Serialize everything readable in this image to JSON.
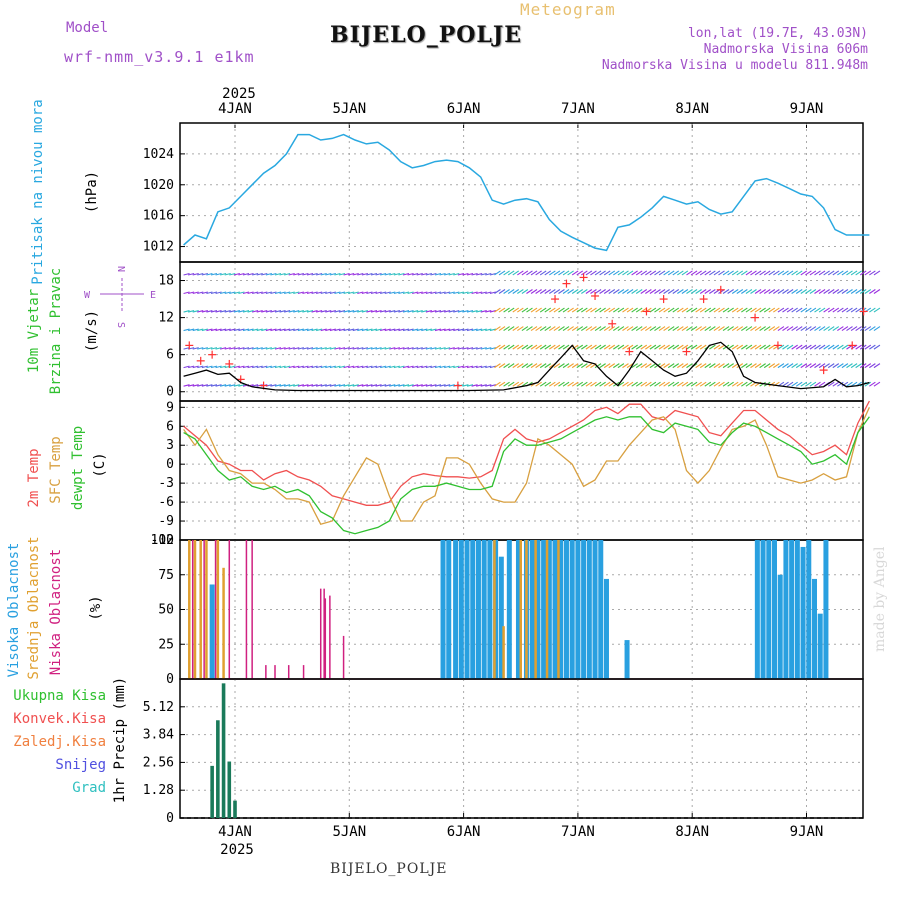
{
  "header": {
    "model_label": "Model",
    "model_name": "wrf-nmm_v3.9.1  e1km",
    "meteogram": "Meteogram",
    "station": "BIJELO_POLJE",
    "coords": "lon,lat (19.7E, 43.03N)",
    "elevation": "Nadmorska Visina 606m",
    "model_elevation": "Nadmorska Visina u modelu 811.948m",
    "made_by": "made by Angel",
    "bottom_title": "BIJELO_POLJE"
  },
  "colors": {
    "pressure": "#29a8e0",
    "temp2m": "#f05050",
    "sfc_temp": "#d8a040",
    "dewpoint": "#30c030",
    "high_cloud": "#29a0e0",
    "mid_cloud": "#e0a030",
    "low_cloud": "#d02080",
    "wind_speed": "#000000",
    "gust": "#ff3030",
    "precip_total": "#1a7a5a",
    "label_purple": "#a050c8"
  },
  "chart_data": [
    {
      "type": "line",
      "panel": "pressure",
      "ylabel_left": "Pritisak na nivou mora",
      "ylabel_unit": "(hPa)",
      "yticks": [
        1012,
        1016,
        1020,
        1024
      ],
      "ylim": [
        1010,
        1028
      ],
      "grid": true,
      "x_day": [
        0.0,
        0.1,
        0.2,
        0.3,
        0.4,
        0.5,
        0.6,
        0.7,
        0.8,
        0.9,
        1.0,
        1.1,
        1.2,
        1.3,
        1.4,
        1.5,
        1.6,
        1.7,
        1.8,
        1.9,
        2.0,
        2.1,
        2.2,
        2.3,
        2.4,
        2.5,
        2.6,
        2.7,
        2.8,
        2.9,
        3.0,
        3.1,
        3.2,
        3.3,
        3.4,
        3.5,
        3.6,
        3.7,
        3.8,
        3.9,
        4.0,
        4.1,
        4.2,
        4.3,
        4.4,
        4.5,
        4.6,
        4.7,
        4.8,
        4.9,
        5.0,
        5.1,
        5.2,
        5.3,
        5.4,
        5.5,
        5.6,
        5.7,
        5.8,
        5.9,
        6.0
      ],
      "values": [
        1012.2,
        1013.5,
        1013.0,
        1016.5,
        1017.0,
        1018.5,
        1020.0,
        1021.5,
        1022.5,
        1024.0,
        1026.5,
        1026.5,
        1025.8,
        1026.0,
        1026.5,
        1025.8,
        1025.3,
        1025.5,
        1024.5,
        1023.0,
        1022.2,
        1022.5,
        1023.0,
        1023.2,
        1023.0,
        1022.2,
        1021.0,
        1018.0,
        1017.5,
        1018.0,
        1018.2,
        1017.8,
        1015.5,
        1014.0,
        1013.2,
        1012.5,
        1011.8,
        1011.5,
        1014.5,
        1014.8,
        1015.8,
        1017.0,
        1018.5,
        1018.0,
        1017.5,
        1017.8,
        1016.8,
        1016.2,
        1016.5,
        1018.5,
        1020.5,
        1020.8,
        1020.2,
        1019.5,
        1018.8,
        1018.5,
        1017.0,
        1014.2,
        1013.5,
        1013.5,
        1013.5
      ]
    },
    {
      "type": "line",
      "panel": "wind",
      "ylabel_left": "10m Vjetar",
      "ylabel_left2": "Brzina i Pravac",
      "ylabel_unit": "(m/s)",
      "compass": [
        "N",
        "W",
        "E",
        "S"
      ],
      "yticks": [
        0,
        6,
        12,
        18
      ],
      "ylim": [
        -1.5,
        21
      ],
      "grid": true,
      "x_day": [
        0.0,
        0.1,
        0.2,
        0.3,
        0.4,
        0.5,
        0.6,
        0.8,
        1.0,
        1.2,
        1.5,
        2.0,
        2.5,
        2.8,
        3.0,
        3.1,
        3.2,
        3.3,
        3.4,
        3.5,
        3.6,
        3.7,
        3.8,
        3.9,
        4.0,
        4.1,
        4.2,
        4.3,
        4.4,
        4.5,
        4.6,
        4.7,
        4.8,
        4.9,
        5.0,
        5.2,
        5.4,
        5.6,
        5.7,
        5.8,
        5.9,
        6.0
      ],
      "series": [
        {
          "name": "",
          "values": [
            2.5,
            3.0,
            3.5,
            2.8,
            3.0,
            1.5,
            0.8,
            0.3,
            0.2,
            0.2,
            0.2,
            0.2,
            0.2,
            0.3,
            1.0,
            1.5,
            3.5,
            5.5,
            7.5,
            5.0,
            4.5,
            2.5,
            1.0,
            3.5,
            6.5,
            5.0,
            3.5,
            2.5,
            3.0,
            5.0,
            7.5,
            8.0,
            6.5,
            2.5,
            1.5,
            1.0,
            0.5,
            0.8,
            2.0,
            0.8,
            1.0,
            1.5
          ]
        }
      ],
      "gust_x_day": [
        0.05,
        0.15,
        0.25,
        0.4,
        0.5,
        0.7,
        2.4,
        3.25,
        3.35,
        3.5,
        3.6,
        3.75,
        3.9,
        4.05,
        4.2,
        4.4,
        4.55,
        4.7,
        5.0,
        5.2,
        5.6,
        5.85,
        5.95
      ],
      "gust_values": [
        7.5,
        5.0,
        6.0,
        4.5,
        2.0,
        1.0,
        1.0,
        15.0,
        17.5,
        18.5,
        15.5,
        11.0,
        6.5,
        13.0,
        15.0,
        6.5,
        15.0,
        16.5,
        12.0,
        7.5,
        3.5,
        7.5,
        13.0
      ]
    },
    {
      "type": "line",
      "panel": "temperature",
      "ylabel_left": "2m Temp",
      "ylabel_left2": "SFC Temp",
      "ylabel_left3": "dewpt Temp",
      "ylabel_unit": "(C)",
      "yticks": [
        -12,
        -9,
        -6,
        -3,
        0,
        3,
        6,
        9
      ],
      "ylim": [
        -12,
        10
      ],
      "grid": true,
      "x_day": [
        0.0,
        0.1,
        0.2,
        0.3,
        0.4,
        0.5,
        0.6,
        0.7,
        0.8,
        0.9,
        1.0,
        1.1,
        1.2,
        1.3,
        1.4,
        1.5,
        1.6,
        1.7,
        1.8,
        1.9,
        2.0,
        2.1,
        2.2,
        2.3,
        2.4,
        2.5,
        2.6,
        2.7,
        2.8,
        2.9,
        3.0,
        3.1,
        3.2,
        3.3,
        3.4,
        3.5,
        3.6,
        3.7,
        3.8,
        3.9,
        4.0,
        4.1,
        4.2,
        4.3,
        4.4,
        4.5,
        4.6,
        4.7,
        4.8,
        4.9,
        5.0,
        5.1,
        5.2,
        5.3,
        5.4,
        5.5,
        5.6,
        5.7,
        5.8,
        5.9,
        6.0
      ],
      "series": [
        {
          "name": "",
          "color": "temp2m",
          "values": [
            6.0,
            4.5,
            3.0,
            0.5,
            0.0,
            -1.0,
            -1.0,
            -2.5,
            -1.5,
            -1.0,
            -2.0,
            -2.5,
            -3.5,
            -5.0,
            -5.5,
            -6.0,
            -6.5,
            -6.5,
            -6.0,
            -3.5,
            -2.0,
            -1.5,
            -1.8,
            -2.0,
            -2.0,
            -2.2,
            -2.0,
            -1.0,
            4.0,
            5.5,
            4.0,
            3.5,
            4.0,
            5.0,
            6.0,
            7.0,
            8.5,
            9.0,
            8.0,
            9.5,
            9.5,
            7.5,
            7.0,
            8.5,
            8.0,
            7.5,
            5.0,
            4.5,
            6.5,
            8.5,
            8.5,
            7.0,
            5.5,
            4.5,
            3.0,
            1.5,
            2.0,
            3.0,
            1.5,
            6.5,
            10.0
          ]
        },
        {
          "name": "",
          "color": "sfc_temp",
          "values": [
            5.5,
            3.0,
            5.5,
            1.5,
            -1.0,
            -1.5,
            -3.0,
            -3.0,
            -4.0,
            -5.5,
            -5.5,
            -6.0,
            -9.5,
            -9.0,
            -5.0,
            -2.0,
            1.0,
            0.0,
            -5.0,
            -9.0,
            -9.0,
            -6.0,
            -5.0,
            1.0,
            1.0,
            0.0,
            -3.0,
            -5.5,
            -6.0,
            -6.0,
            -3.0,
            4.0,
            3.0,
            1.5,
            0.0,
            -3.5,
            -2.5,
            0.5,
            0.5,
            3.0,
            5.0,
            7.0,
            7.5,
            5.5,
            -1.0,
            -3.0,
            -1.0,
            2.5,
            5.5,
            6.0,
            7.0,
            3.0,
            -2.0,
            -2.5,
            -3.0,
            -2.5,
            -1.5,
            -2.5,
            -2.0,
            5.0,
            9.0
          ]
        },
        {
          "name": "",
          "color": "dewpoint",
          "values": [
            5.0,
            4.0,
            1.5,
            -1.0,
            -2.5,
            -2.0,
            -3.5,
            -4.0,
            -3.5,
            -4.5,
            -4.0,
            -5.0,
            -7.5,
            -8.5,
            -10.5,
            -11.0,
            -10.5,
            -10.0,
            -9.0,
            -5.5,
            -4.0,
            -3.5,
            -3.5,
            -3.0,
            -3.5,
            -4.0,
            -4.0,
            -3.5,
            2.0,
            4.0,
            3.0,
            3.0,
            3.5,
            4.0,
            5.0,
            6.0,
            7.0,
            7.5,
            7.0,
            7.5,
            7.5,
            5.5,
            5.0,
            6.5,
            6.0,
            5.5,
            3.5,
            3.0,
            5.0,
            6.5,
            6.0,
            5.0,
            4.0,
            3.0,
            2.0,
            0.0,
            0.5,
            1.5,
            0.0,
            5.0,
            7.5
          ]
        }
      ]
    },
    {
      "type": "bar",
      "panel": "cloud",
      "ylabel_left": "Visoka Oblacnost",
      "ylabel_left2": "Srednja Oblacnost",
      "ylabel_left3": "Niska Oblacnost",
      "ylabel_unit": "(%)",
      "yticks": [
        0,
        25,
        50,
        75,
        100
      ],
      "ylim": [
        0,
        100
      ],
      "grid": true,
      "series": [
        {
          "name": "",
          "color": "high_cloud",
          "x_day": [
            0.25,
            2.27,
            2.32,
            2.38,
            2.43,
            2.48,
            2.53,
            2.58,
            2.63,
            2.68,
            2.73,
            2.78,
            2.85,
            2.93,
            3.0,
            3.05,
            3.1,
            3.15,
            3.2,
            3.25,
            3.3,
            3.35,
            3.4,
            3.45,
            3.5,
            3.55,
            3.6,
            3.65,
            3.7,
            3.88,
            5.02,
            5.07,
            5.12,
            5.17,
            5.22,
            5.27,
            5.32,
            5.37,
            5.42,
            5.47,
            5.52,
            5.57,
            5.62
          ],
          "values": [
            68,
            100,
            100,
            100,
            100,
            100,
            100,
            100,
            100,
            100,
            100,
            88,
            100,
            100,
            100,
            100,
            100,
            100,
            100,
            100,
            100,
            100,
            100,
            100,
            100,
            100,
            100,
            100,
            72,
            28,
            100,
            100,
            100,
            100,
            75,
            100,
            100,
            100,
            95,
            100,
            72,
            47,
            100
          ]
        },
        {
          "name": "",
          "color": "mid_cloud",
          "x_day": [
            0.05,
            0.1,
            0.15,
            0.2,
            0.3,
            0.35,
            2.72,
            2.8,
            2.95,
            3.0,
            3.08,
            3.18,
            3.28
          ],
          "values": [
            100,
            100,
            100,
            100,
            100,
            80,
            100,
            38,
            100,
            100,
            100,
            100,
            100
          ]
        },
        {
          "name": "",
          "color": "low_cloud",
          "x_day": [
            0.08,
            0.18,
            0.28,
            0.4,
            0.55,
            0.6,
            0.72,
            0.8,
            0.92,
            1.05,
            1.2,
            1.23,
            1.24,
            1.28,
            1.4
          ],
          "values": [
            100,
            100,
            100,
            100,
            100,
            100,
            10,
            10,
            10,
            10,
            65,
            65,
            58,
            60,
            31
          ]
        }
      ]
    },
    {
      "type": "bar",
      "panel": "precipitation",
      "legend": [
        "Ukupna Kisa",
        "Konvek.Kisa",
        "Zaledj.Kisa",
        "Snijeg",
        "Grad"
      ],
      "ylabel_unit": "1hr Precip (mm)",
      "yticks": [
        0,
        1.28,
        2.56,
        3.84,
        5.12
      ],
      "ylim": [
        0,
        6.4
      ],
      "grid": true,
      "x_day": [
        0.25,
        0.3,
        0.35,
        0.4,
        0.45
      ],
      "values": [
        2.4,
        4.5,
        6.2,
        2.6,
        0.8
      ]
    }
  ],
  "x_axis": {
    "year": "2025",
    "day_labels": [
      "4JAN",
      "5JAN",
      "6JAN",
      "7JAN",
      "8JAN",
      "9JAN"
    ]
  }
}
